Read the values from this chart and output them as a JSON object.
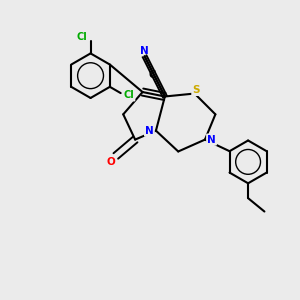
{
  "bg_color": "#ebebeb",
  "bond_color": "#000000",
  "atom_colors": {
    "C": "#000000",
    "N": "#0000ff",
    "O": "#ff0000",
    "S": "#ccaa00",
    "Cl": "#00aa00"
  },
  "figsize": [
    3.0,
    3.0
  ],
  "dpi": 100
}
